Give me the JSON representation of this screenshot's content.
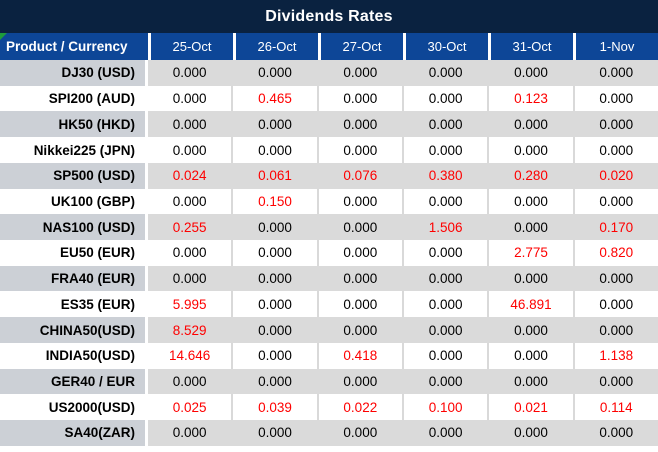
{
  "title": "Dividends Rates",
  "chart_data": {
    "type": "table",
    "title": "Dividends Rates",
    "columns": [
      "Product / Currency",
      "25-Oct",
      "26-Oct",
      "27-Oct",
      "30-Oct",
      "31-Oct",
      "1-Nov"
    ],
    "rows": [
      {
        "product": "DJ30 (USD)",
        "values": [
          0.0,
          0.0,
          0.0,
          0.0,
          0.0,
          0.0
        ]
      },
      {
        "product": "SPI200 (AUD)",
        "values": [
          0.0,
          0.465,
          0.0,
          0.0,
          0.123,
          0.0
        ]
      },
      {
        "product": "HK50 (HKD)",
        "values": [
          0.0,
          0.0,
          0.0,
          0.0,
          0.0,
          0.0
        ]
      },
      {
        "product": "Nikkei225 (JPN)",
        "values": [
          0.0,
          0.0,
          0.0,
          0.0,
          0.0,
          0.0
        ]
      },
      {
        "product": "SP500 (USD)",
        "values": [
          0.024,
          0.061,
          0.076,
          0.38,
          0.28,
          0.02
        ]
      },
      {
        "product": "UK100 (GBP)",
        "values": [
          0.0,
          0.15,
          0.0,
          0.0,
          0.0,
          0.0
        ]
      },
      {
        "product": "NAS100 (USD)",
        "values": [
          0.255,
          0.0,
          0.0,
          1.506,
          0.0,
          0.17
        ]
      },
      {
        "product": "EU50 (EUR)",
        "values": [
          0.0,
          0.0,
          0.0,
          0.0,
          2.775,
          0.82
        ]
      },
      {
        "product": "FRA40 (EUR)",
        "values": [
          0.0,
          0.0,
          0.0,
          0.0,
          0.0,
          0.0
        ]
      },
      {
        "product": "ES35 (EUR)",
        "values": [
          5.995,
          0.0,
          0.0,
          0.0,
          46.891,
          0.0
        ]
      },
      {
        "product": "CHINA50(USD)",
        "values": [
          8.529,
          0.0,
          0.0,
          0.0,
          0.0,
          0.0
        ]
      },
      {
        "product": "INDIA50(USD)",
        "values": [
          14.646,
          0.0,
          0.418,
          0.0,
          0.0,
          1.138
        ]
      },
      {
        "product": "GER40 / EUR",
        "values": [
          0.0,
          0.0,
          0.0,
          0.0,
          0.0,
          0.0
        ]
      },
      {
        "product": "US2000(USD)",
        "values": [
          0.025,
          0.039,
          0.022,
          0.1,
          0.021,
          0.114
        ]
      },
      {
        "product": "SA40(ZAR)",
        "values": [
          0.0,
          0.0,
          0.0,
          0.0,
          0.0,
          0.0
        ]
      }
    ],
    "value_format": "3 decimals",
    "highlight_rule": "non-zero values rendered in red",
    "layout": {
      "striped_rows": true,
      "first_data_row_shade": "gray",
      "legend": "none",
      "grid": "column separators only"
    }
  },
  "colors": {
    "title_bg": "#0A2240",
    "header_bg": "#0D4697",
    "header_text": "#FFFFFF",
    "row_gray_values": "#DADADA",
    "row_gray_label": "#CCD0D6",
    "row_white": "#FFFFFF",
    "value_black": "#000000",
    "value_red": "#FE0000",
    "column_separator": "#D9D9D9",
    "corner_marker_green": "#1E9C3B"
  },
  "icons": {
    "corner_marker": "green-corner-triangle"
  }
}
